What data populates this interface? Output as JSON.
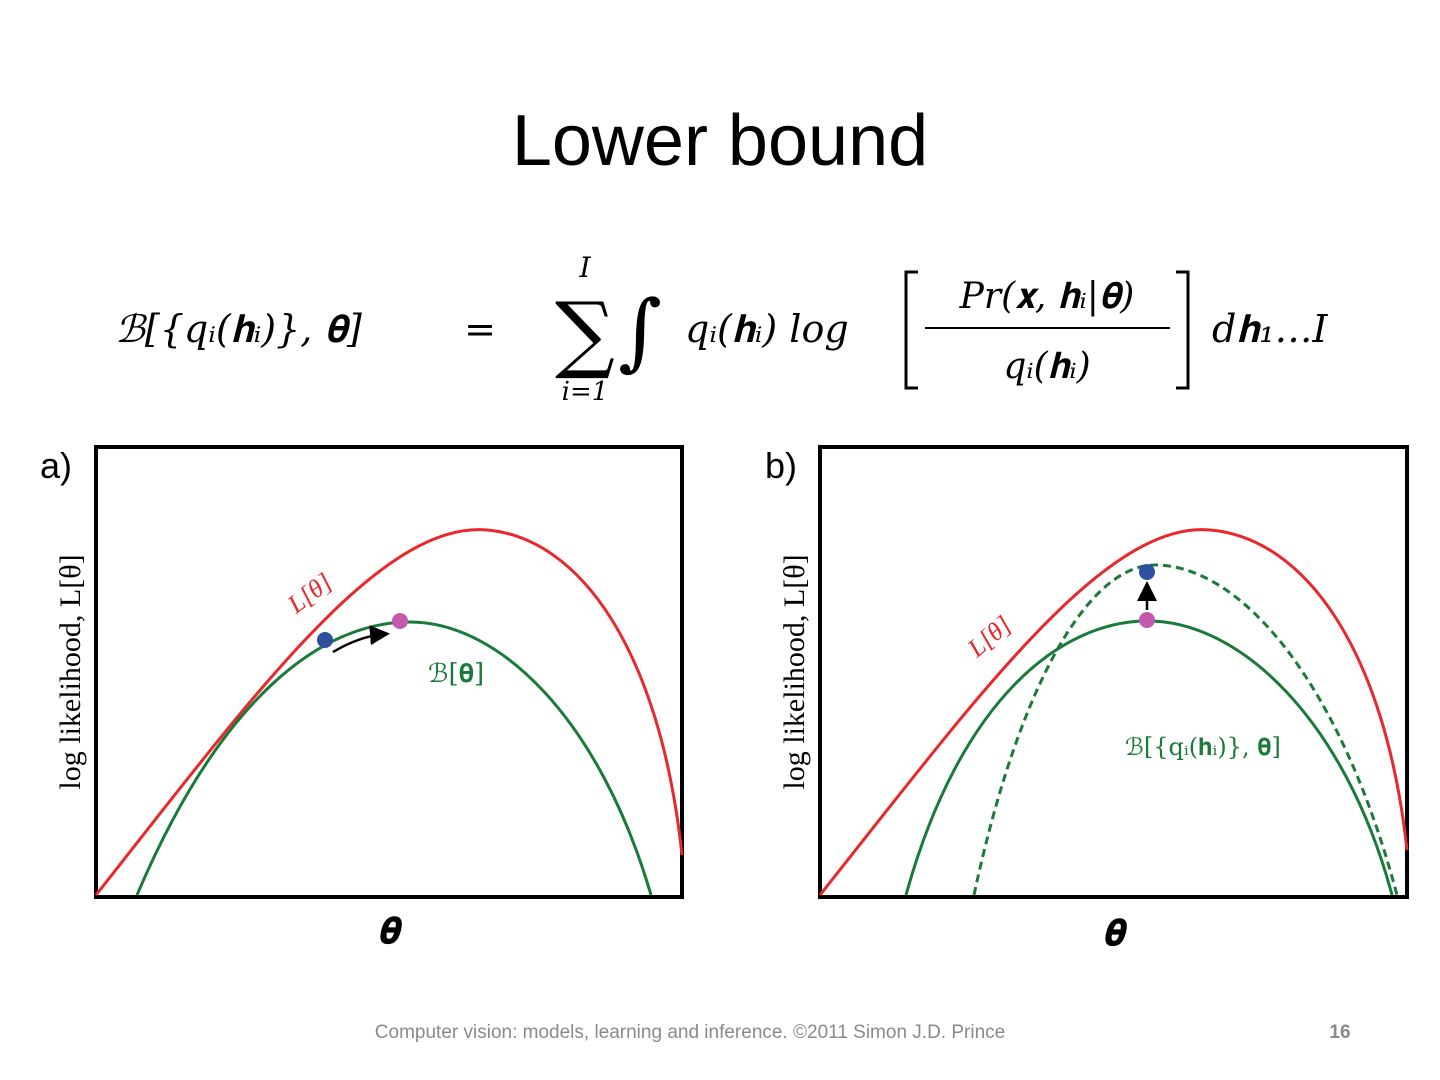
{
  "title": "Lower bound",
  "equation": {
    "lhs": "ℬ[{qᵢ(𝐡ᵢ)}, 𝛉]",
    "equals": "=",
    "sum_upper": "I",
    "sum_sign": "∑",
    "sum_lower": "i=1",
    "integral": "∫",
    "factor": "qᵢ(𝐡ᵢ) log",
    "numerator": "Pr(𝐱, 𝐡ᵢ|𝛉)",
    "denominator": "qᵢ(𝐡ᵢ)",
    "differential": "d𝐡₁…I"
  },
  "panels": [
    {
      "label": "a)",
      "y_label": "log likelihood, L[θ]",
      "x_label": "𝛉",
      "red_label": "L[θ]",
      "green_label": "ℬ[𝛉]"
    },
    {
      "label": "b)",
      "y_label": "log likelihood, L[θ]",
      "x_label": "𝛉",
      "red_label": "L[θ]",
      "green_label": "ℬ[{qᵢ(𝐡ᵢ)}, 𝛉]"
    }
  ],
  "footer": {
    "text": "Computer vision: models, learning and inference.  ©2011 Simon J.D. Prince",
    "page": "16"
  }
}
